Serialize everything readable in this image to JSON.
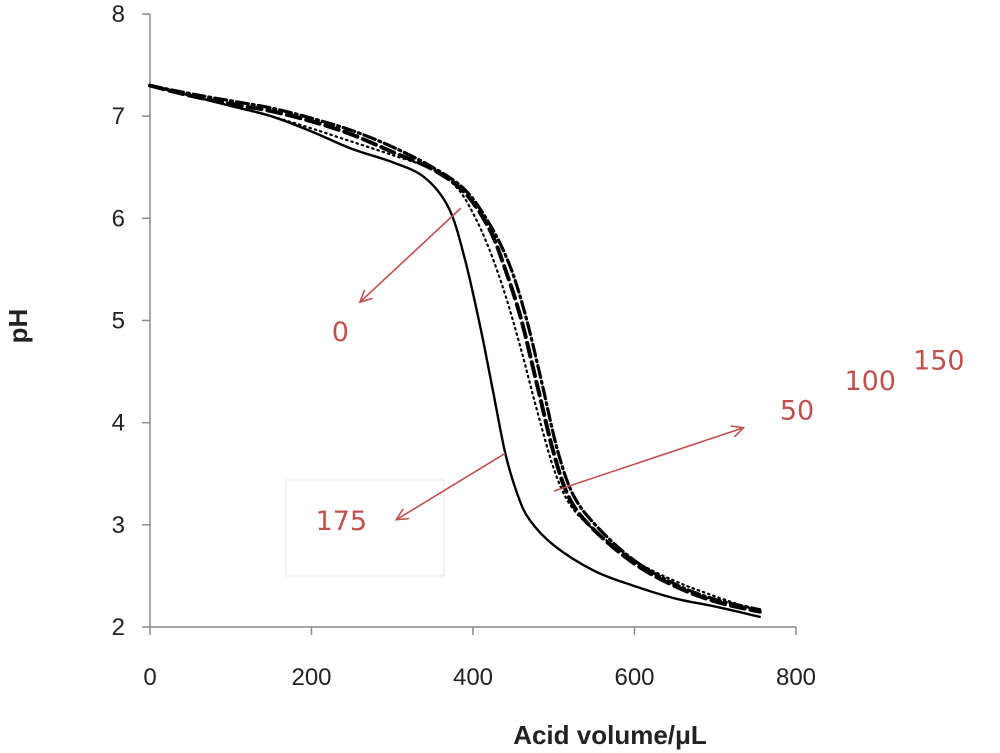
{
  "chart_data": {
    "type": "line",
    "title": "",
    "xlabel": "Acid volume/μL",
    "ylabel": "pH",
    "xlim": [
      0,
      800
    ],
    "ylim": [
      2,
      8
    ],
    "xticks": [
      0,
      200,
      400,
      600,
      800
    ],
    "yticks": [
      2,
      3,
      4,
      5,
      6,
      7,
      8
    ],
    "grid": false,
    "legend": "none",
    "annotation_color": "#c0504d",
    "series": [
      {
        "style": "solid",
        "color": "#000000",
        "x": [
          0,
          50,
          100,
          150,
          200,
          250,
          300,
          340,
          370,
          390,
          410,
          425,
          440,
          455,
          470,
          500,
          550,
          600,
          650,
          700,
          755
        ],
        "y": [
          7.3,
          7.2,
          7.1,
          7.0,
          6.85,
          6.68,
          6.55,
          6.4,
          6.1,
          5.6,
          4.9,
          4.3,
          3.7,
          3.3,
          3.05,
          2.8,
          2.55,
          2.4,
          2.28,
          2.2,
          2.1
        ]
      },
      {
        "style": "dotted",
        "color": "#000000",
        "x": [
          0,
          50,
          100,
          150,
          200,
          250,
          300,
          350,
          380,
          400,
          420,
          440,
          460,
          480,
          500,
          520,
          550,
          600,
          650,
          700,
          755
        ],
        "y": [
          7.3,
          7.2,
          7.1,
          7.0,
          6.88,
          6.75,
          6.62,
          6.48,
          6.3,
          6.05,
          5.7,
          5.25,
          4.7,
          4.1,
          3.55,
          3.2,
          2.95,
          2.65,
          2.45,
          2.3,
          2.15
        ]
      },
      {
        "style": "dashed",
        "color": "#000000",
        "x": [
          0,
          50,
          100,
          150,
          200,
          250,
          300,
          350,
          390,
          420,
          440,
          460,
          480,
          500,
          520,
          550,
          600,
          650,
          700,
          755
        ],
        "y": [
          7.3,
          7.2,
          7.12,
          7.05,
          6.95,
          6.82,
          6.65,
          6.48,
          6.25,
          5.9,
          5.5,
          5.0,
          4.35,
          3.7,
          3.25,
          2.95,
          2.62,
          2.4,
          2.25,
          2.15
        ]
      },
      {
        "style": "dash-dot",
        "color": "#000000",
        "x": [
          0,
          50,
          100,
          150,
          200,
          250,
          300,
          350,
          390,
          420,
          445,
          465,
          485,
          505,
          525,
          555,
          600,
          650,
          700,
          755
        ],
        "y": [
          7.3,
          7.22,
          7.15,
          7.08,
          6.98,
          6.86,
          6.7,
          6.5,
          6.28,
          5.95,
          5.55,
          5.05,
          4.4,
          3.72,
          3.28,
          2.97,
          2.65,
          2.42,
          2.27,
          2.17
        ]
      }
    ],
    "annotations": [
      {
        "text": "0",
        "x": 225,
        "y": 4.8,
        "arrow_from": [
          385,
          6.1
        ],
        "arrow_to": [
          260,
          5.18
        ]
      },
      {
        "text": "175",
        "x": 205,
        "y": 2.95,
        "arrow_from": [
          440,
          3.7
        ],
        "arrow_to": [
          305,
          3.05
        ]
      },
      {
        "text": "50",
        "x": 780,
        "y": 4.03,
        "arrow_from": [
          500,
          3.33
        ],
        "arrow_to": [
          735,
          3.95
        ]
      },
      {
        "text": "100",
        "x": 860,
        "y": 4.32,
        "arrow_from": null,
        "arrow_to": null
      },
      {
        "text": "150",
        "x": 945,
        "y": 4.52,
        "arrow_from": null,
        "arrow_to": null
      }
    ]
  }
}
